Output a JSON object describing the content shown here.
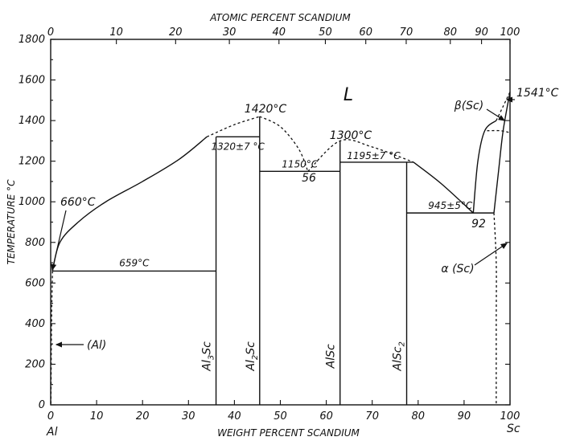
{
  "chart_data": {
    "type": "phase-diagram",
    "top_axis_title": "ATOMIC PERCENT SCANDIUM",
    "bottom_axis_title": "WEIGHT PERCENT SCANDIUM",
    "y_axis_title": "TEMPERATURE °C",
    "left_element": "Al",
    "right_element": "Sc",
    "xlim": [
      0,
      100
    ],
    "ylim": [
      0,
      1800
    ],
    "x_ticks": [
      0,
      10,
      20,
      30,
      40,
      50,
      60,
      70,
      80,
      90,
      100
    ],
    "y_ticks": [
      0,
      200,
      400,
      600,
      800,
      1000,
      1200,
      1400,
      1600,
      1800
    ],
    "top_ticks": [
      {
        "at": 0,
        "wt": 0.0
      },
      {
        "at": 10,
        "wt": 14.3
      },
      {
        "at": 20,
        "wt": 27.2
      },
      {
        "at": 30,
        "wt": 38.9
      },
      {
        "at": 40,
        "wt": 49.7
      },
      {
        "at": 50,
        "wt": 59.8
      },
      {
        "at": 60,
        "wt": 68.6
      },
      {
        "at": 70,
        "wt": 77.4
      },
      {
        "at": 80,
        "wt": 87.0
      },
      {
        "at": 90,
        "wt": 93.8
      },
      {
        "at": 100,
        "wt": 100.0
      }
    ],
    "phase_region_label": "L",
    "compounds": [
      {
        "name": "Al",
        "sub": "3",
        "suffix": "Sc",
        "wt": 36
      },
      {
        "name": "Al",
        "sub": "2",
        "suffix": "Sc",
        "wt": 45.5
      },
      {
        "name": "AlSc",
        "sub": "",
        "suffix": "",
        "wt": 63
      },
      {
        "name": "AlSc",
        "sub": "2",
        "suffix": "",
        "wt": 77.5
      }
    ],
    "invariants": [
      {
        "label": "659°C",
        "wt_from": 0.4,
        "wt_to": 36,
        "t": 659
      },
      {
        "label": "1320±7 °C",
        "wt_from": 36,
        "wt_to": 45.5,
        "t": 1320
      },
      {
        "label": "1150°C",
        "wt_from": 45.5,
        "wt_to": 63,
        "t": 1150
      },
      {
        "label": "1195±7 °C",
        "wt_from": 63,
        "wt_to": 79,
        "t": 1195
      },
      {
        "label": "945±5°C",
        "wt_from": 77.5,
        "wt_to": 96.5,
        "t": 945
      }
    ],
    "annotations": [
      {
        "text": "660°C",
        "wt": 0,
        "t": 660
      },
      {
        "text": "1420°C",
        "wt": 45.5,
        "t": 1420
      },
      {
        "text": "1300°C",
        "wt": 63,
        "t": 1300
      },
      {
        "text": "1541°C",
        "wt": 100,
        "t": 1541
      },
      {
        "text": "56",
        "wt": 56,
        "t": 1150
      },
      {
        "text": "92",
        "wt": 92,
        "t": 945
      },
      {
        "text": "β(Sc)",
        "wt": 97.5,
        "t": 1350
      },
      {
        "text": "α (Sc)",
        "wt": 97,
        "t": 900
      },
      {
        "text": "(Al)",
        "wt": 0.5,
        "t": 300
      }
    ],
    "liquidus_solid": [
      [
        0.4,
        659
      ],
      [
        2,
        800
      ],
      [
        6,
        900
      ],
      [
        12,
        1000
      ],
      [
        20,
        1100
      ],
      [
        28,
        1210
      ],
      [
        34,
        1320
      ]
    ],
    "liquidus_dashed_1": [
      [
        34,
        1320
      ],
      [
        40,
        1380
      ],
      [
        45.5,
        1420
      ]
    ],
    "liquidus_dashed_2": [
      [
        45.5,
        1420
      ],
      [
        50,
        1370
      ],
      [
        54,
        1260
      ],
      [
        56,
        1150
      ]
    ],
    "liquidus_dashed_3": [
      [
        56,
        1150
      ],
      [
        63,
        1300
      ],
      [
        70,
        1270
      ],
      [
        79,
        1195
      ]
    ],
    "liquidus_solid_2": [
      [
        79,
        1195
      ],
      [
        85,
        1090
      ],
      [
        92,
        945
      ]
    ],
    "liquidus_solid_3": [
      [
        92,
        945
      ],
      [
        93,
        1200
      ],
      [
        94.5,
        1350
      ],
      [
        97,
        1400
      ]
    ],
    "liquidus_dashed_4": [
      [
        97,
        1400
      ],
      [
        98.5,
        1470
      ],
      [
        100,
        1541
      ]
    ],
    "al_solvus": [
      [
        0.4,
        659
      ],
      [
        0.25,
        500
      ],
      [
        0.15,
        300
      ],
      [
        0.05,
        0
      ]
    ],
    "sc_solidus": [
      [
        96.5,
        945
      ],
      [
        97.5,
        1150
      ],
      [
        98.5,
        1350
      ],
      [
        100,
        1541
      ]
    ],
    "sc_solvus": [
      [
        96.5,
        945
      ],
      [
        97,
        700
      ],
      [
        97,
        400
      ],
      [
        97,
        0
      ]
    ],
    "sc_transition": [
      [
        95,
        1350
      ],
      [
        98,
        1350
      ],
      [
        100,
        1340
      ]
    ]
  }
}
